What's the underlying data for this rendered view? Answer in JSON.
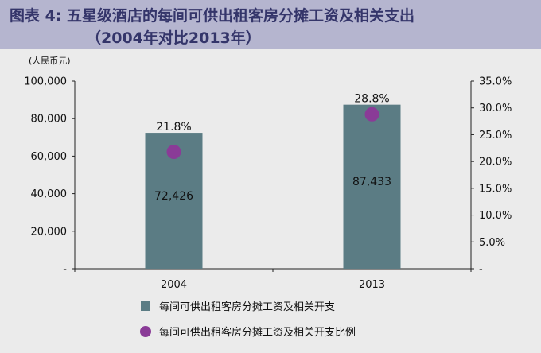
{
  "header": {
    "title_line1": "图表 4: 五星级酒店的每间可供出租客房分摊工资及相关支出",
    "title_line2": "（2004年对比2013年）"
  },
  "colors": {
    "header_bg": "#b5b5cf",
    "title": "#34356a",
    "bar": "#5b7c84",
    "dot": "#8a3b97",
    "plot_bg": "#ebebeb"
  },
  "chart_data": {
    "type": "bar",
    "categories": [
      "2004",
      "2013"
    ],
    "y_unit_label": "(人民币元)",
    "ylim": [
      0,
      100000
    ],
    "y2lim": [
      0,
      35
    ],
    "y_ticks": [
      "-",
      "20,000",
      "40,000",
      "60,000",
      "80,000",
      "100,000"
    ],
    "y2_ticks": [
      "-",
      "5.0%",
      "10.0%",
      "15.0%",
      "20.0%",
      "25.0%",
      "30.0%",
      "35.0%"
    ],
    "grid": false,
    "legend_position": "bottom",
    "series": [
      {
        "name": "每间可供出租客房分摊工资及相关开支",
        "type": "bar",
        "axis": "left",
        "values": [
          72426,
          87433
        ],
        "labels": [
          "72,426",
          "87,433"
        ]
      },
      {
        "name": "每间可供出租客房分摊工资及相关开支比例",
        "type": "scatter",
        "axis": "right",
        "values": [
          21.8,
          28.8
        ],
        "labels": [
          "21.8%",
          "28.8%"
        ]
      }
    ]
  }
}
